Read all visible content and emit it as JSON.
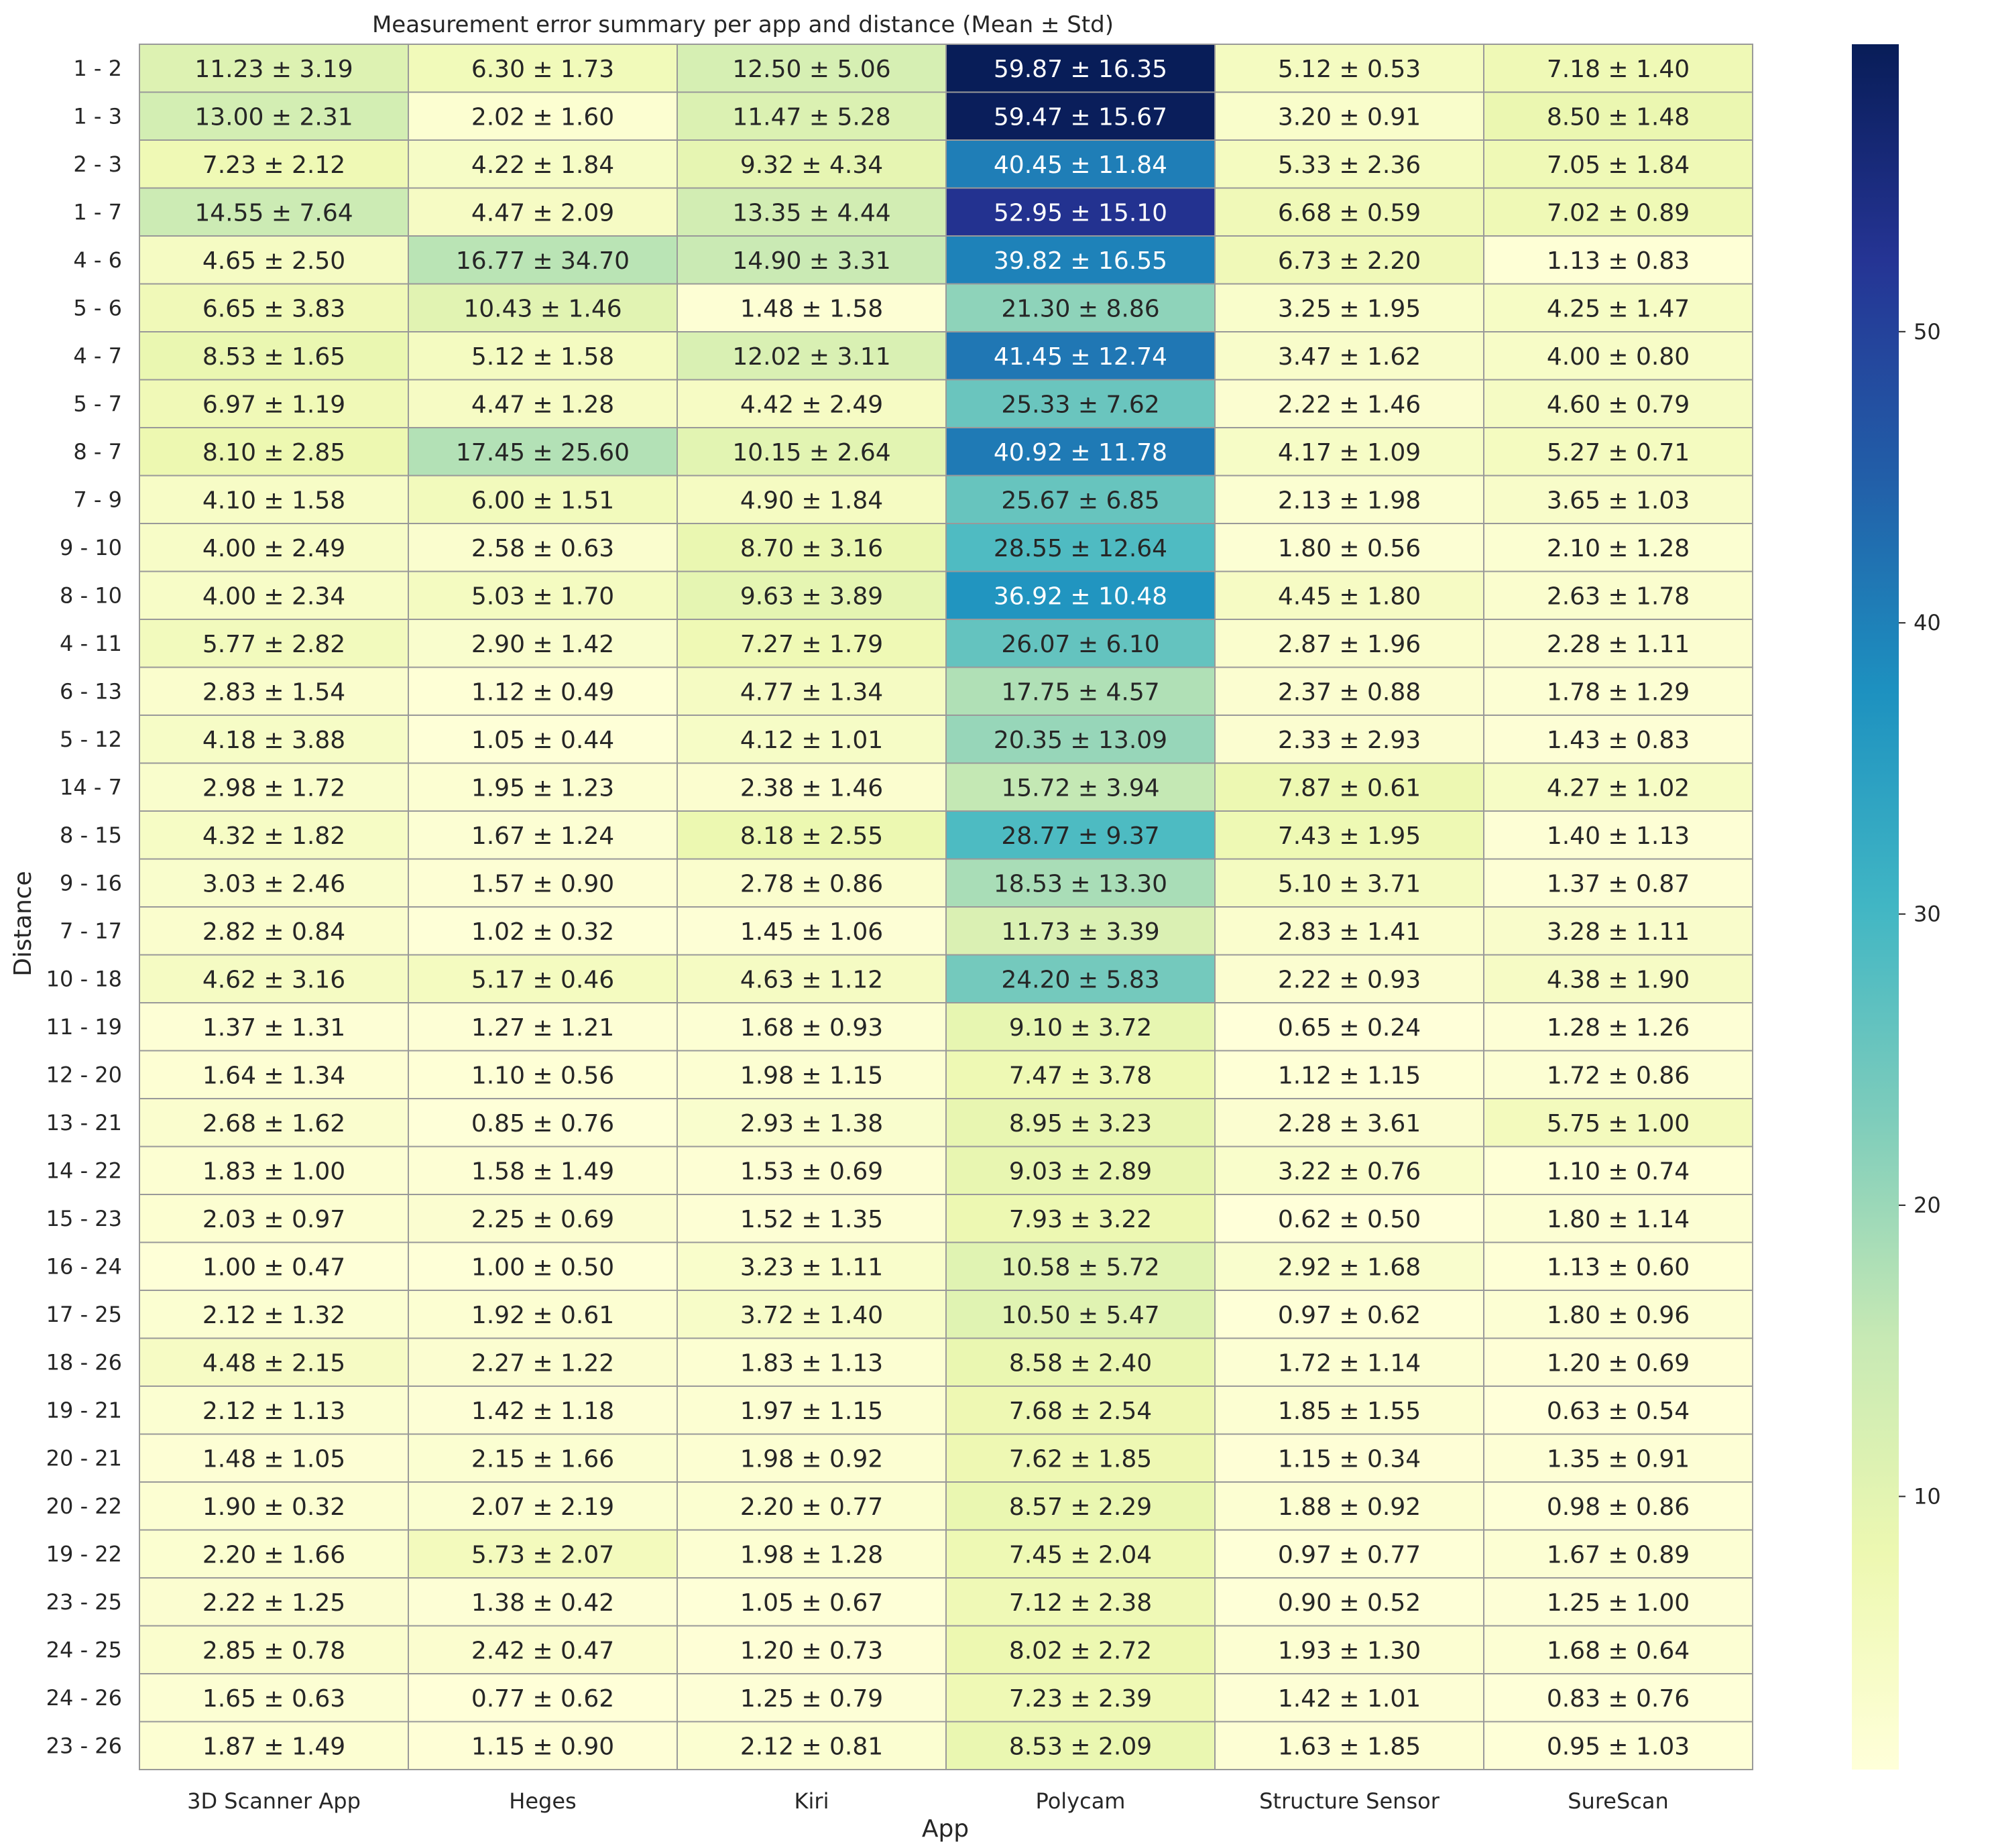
{
  "chart_data": {
    "type": "heatmap",
    "title": "Measurement error summary per app and distance (Mean ± Std)",
    "xlabel": "App",
    "ylabel": "Distance",
    "columns": [
      "3D Scanner App",
      "Heges",
      "Kiri",
      "Polycam",
      "Structure Sensor",
      "SureScan"
    ],
    "rows": [
      "1 - 2",
      "1 - 3",
      "2 - 3",
      "1 - 7",
      "4 - 6",
      "5 - 6",
      "4 - 7",
      "5 - 7",
      "8 - 7",
      "7 - 9",
      "9 - 10",
      "8 - 10",
      "4 - 11",
      "6 - 13",
      "5 - 12",
      "14 - 7",
      "8 - 15",
      "9 - 16",
      "7 - 17",
      "10 - 18",
      "11 - 19",
      "12 - 20",
      "13 - 21",
      "14 - 22",
      "15 - 23",
      "16 - 24",
      "17 - 25",
      "18 - 26",
      "19 - 21",
      "20 - 21",
      "20 - 22",
      "19 - 22",
      "23 - 25",
      "24 - 25",
      "24 - 26",
      "23 - 26"
    ],
    "mean": [
      [
        11.23,
        6.3,
        12.5,
        59.87,
        5.12,
        7.18
      ],
      [
        13.0,
        2.02,
        11.47,
        59.47,
        3.2,
        8.5
      ],
      [
        7.23,
        4.22,
        9.32,
        40.45,
        5.33,
        7.05
      ],
      [
        14.55,
        4.47,
        13.35,
        52.95,
        6.68,
        7.02
      ],
      [
        4.65,
        16.77,
        14.9,
        39.82,
        6.73,
        1.13
      ],
      [
        6.65,
        10.43,
        1.48,
        21.3,
        3.25,
        4.25
      ],
      [
        8.53,
        5.12,
        12.02,
        41.45,
        3.47,
        4.0
      ],
      [
        6.97,
        4.47,
        4.42,
        25.33,
        2.22,
        4.6
      ],
      [
        8.1,
        17.45,
        10.15,
        40.92,
        4.17,
        5.27
      ],
      [
        4.1,
        6.0,
        4.9,
        25.67,
        2.13,
        3.65
      ],
      [
        4.0,
        2.58,
        8.7,
        28.55,
        1.8,
        2.1
      ],
      [
        4.0,
        5.03,
        9.63,
        36.92,
        4.45,
        2.63
      ],
      [
        5.77,
        2.9,
        7.27,
        26.07,
        2.87,
        2.28
      ],
      [
        2.83,
        1.12,
        4.77,
        17.75,
        2.37,
        1.78
      ],
      [
        4.18,
        1.05,
        4.12,
        20.35,
        2.33,
        1.43
      ],
      [
        2.98,
        1.95,
        2.38,
        15.72,
        7.87,
        4.27
      ],
      [
        4.32,
        1.67,
        8.18,
        28.77,
        7.43,
        1.4
      ],
      [
        3.03,
        1.57,
        2.78,
        18.53,
        5.1,
        1.37
      ],
      [
        2.82,
        1.02,
        1.45,
        11.73,
        2.83,
        3.28
      ],
      [
        4.62,
        5.17,
        4.63,
        24.2,
        2.22,
        4.38
      ],
      [
        1.37,
        1.27,
        1.68,
        9.1,
        0.65,
        1.28
      ],
      [
        1.64,
        1.1,
        1.98,
        7.47,
        1.12,
        1.72
      ],
      [
        2.68,
        0.85,
        2.93,
        8.95,
        2.28,
        5.75
      ],
      [
        1.83,
        1.58,
        1.53,
        9.03,
        3.22,
        1.1
      ],
      [
        2.03,
        2.25,
        1.52,
        7.93,
        0.62,
        1.8
      ],
      [
        1.0,
        1.0,
        3.23,
        10.58,
        2.92,
        1.13
      ],
      [
        2.12,
        1.92,
        3.72,
        10.5,
        0.97,
        1.8
      ],
      [
        4.48,
        2.27,
        1.83,
        8.58,
        1.72,
        1.2
      ],
      [
        2.12,
        1.42,
        1.97,
        7.68,
        1.85,
        0.63
      ],
      [
        1.48,
        2.15,
        1.98,
        7.62,
        1.15,
        1.35
      ],
      [
        1.9,
        2.07,
        2.2,
        8.57,
        1.88,
        0.98
      ],
      [
        2.2,
        5.73,
        1.98,
        7.45,
        0.97,
        1.67
      ],
      [
        2.22,
        1.38,
        1.05,
        7.12,
        0.9,
        1.25
      ],
      [
        2.85,
        2.42,
        1.2,
        8.02,
        1.93,
        1.68
      ],
      [
        1.65,
        0.77,
        1.25,
        7.23,
        1.42,
        0.83
      ],
      [
        1.87,
        1.15,
        2.12,
        8.53,
        1.63,
        0.95
      ]
    ],
    "std": [
      [
        3.19,
        1.73,
        5.06,
        16.35,
        0.53,
        1.4
      ],
      [
        2.31,
        1.6,
        5.28,
        15.67,
        0.91,
        1.48
      ],
      [
        2.12,
        1.84,
        4.34,
        11.84,
        2.36,
        1.84
      ],
      [
        7.64,
        2.09,
        4.44,
        15.1,
        0.59,
        0.89
      ],
      [
        2.5,
        34.7,
        3.31,
        16.55,
        2.2,
        0.83
      ],
      [
        3.83,
        1.46,
        1.58,
        8.86,
        1.95,
        1.47
      ],
      [
        1.65,
        1.58,
        3.11,
        12.74,
        1.62,
        0.8
      ],
      [
        1.19,
        1.28,
        2.49,
        7.62,
        1.46,
        0.79
      ],
      [
        2.85,
        25.6,
        2.64,
        11.78,
        1.09,
        0.71
      ],
      [
        1.58,
        1.51,
        1.84,
        6.85,
        1.98,
        1.03
      ],
      [
        2.49,
        0.63,
        3.16,
        12.64,
        0.56,
        1.28
      ],
      [
        2.34,
        1.7,
        3.89,
        10.48,
        1.8,
        1.78
      ],
      [
        2.82,
        1.42,
        1.79,
        6.1,
        1.96,
        1.11
      ],
      [
        1.54,
        0.49,
        1.34,
        4.57,
        0.88,
        1.29
      ],
      [
        3.88,
        0.44,
        1.01,
        13.09,
        2.93,
        0.83
      ],
      [
        1.72,
        1.23,
        1.46,
        3.94,
        0.61,
        1.02
      ],
      [
        1.82,
        1.24,
        2.55,
        9.37,
        1.95,
        1.13
      ],
      [
        2.46,
        0.9,
        0.86,
        13.3,
        3.71,
        0.87
      ],
      [
        0.84,
        0.32,
        1.06,
        3.39,
        1.41,
        1.11
      ],
      [
        3.16,
        0.46,
        1.12,
        5.83,
        0.93,
        1.9
      ],
      [
        1.31,
        1.21,
        0.93,
        3.72,
        0.24,
        1.26
      ],
      [
        1.34,
        0.56,
        1.15,
        3.78,
        1.15,
        0.86
      ],
      [
        1.62,
        0.76,
        1.38,
        3.23,
        3.61,
        1.0
      ],
      [
        1.0,
        1.49,
        0.69,
        2.89,
        0.76,
        0.74
      ],
      [
        0.97,
        0.69,
        1.35,
        3.22,
        0.5,
        1.14
      ],
      [
        0.47,
        0.5,
        1.11,
        5.72,
        1.68,
        0.6
      ],
      [
        1.32,
        0.61,
        1.4,
        5.47,
        0.62,
        0.96
      ],
      [
        2.15,
        1.22,
        1.13,
        2.4,
        1.14,
        0.69
      ],
      [
        1.13,
        1.18,
        1.15,
        2.54,
        1.55,
        0.54
      ],
      [
        1.05,
        1.66,
        0.92,
        1.85,
        0.34,
        0.91
      ],
      [
        0.32,
        2.19,
        0.77,
        2.29,
        0.92,
        0.86
      ],
      [
        1.66,
        2.07,
        1.28,
        2.04,
        0.77,
        0.89
      ],
      [
        1.25,
        0.42,
        0.67,
        2.38,
        0.52,
        1.0
      ],
      [
        0.78,
        0.47,
        0.73,
        2.72,
        1.3,
        0.64
      ],
      [
        0.63,
        0.62,
        0.79,
        2.39,
        1.01,
        0.76
      ],
      [
        1.49,
        0.9,
        0.81,
        2.09,
        1.85,
        1.03
      ]
    ],
    "color_scale": {
      "name": "YlGnBu",
      "vmin": 0.62,
      "vmax": 59.87,
      "ticks": [
        10,
        20,
        30,
        40,
        50
      ],
      "stops": [
        "#ffffd9",
        "#edf8b1",
        "#c7e9b4",
        "#7fcdbb",
        "#41b6c4",
        "#1d91c0",
        "#225ea8",
        "#253494",
        "#081d58"
      ]
    },
    "cell_border_color": "#999999",
    "grid": false,
    "legend": "colorbar-right"
  }
}
